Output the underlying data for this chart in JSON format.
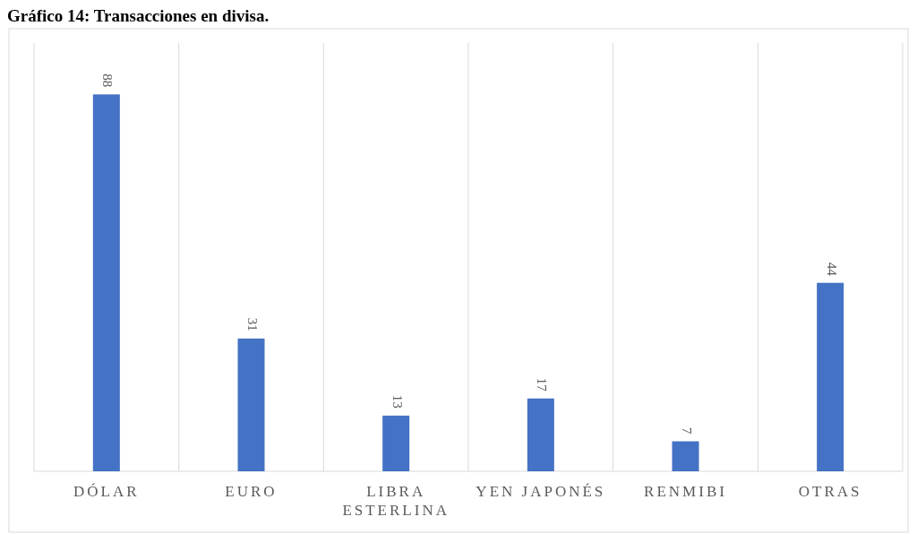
{
  "chart_data": {
    "type": "bar",
    "title": "Gráfico 14: Transacciones en divisa.",
    "categories": [
      "DÓLAR",
      "EURO",
      "LIBRA ESTERLINA",
      "YEN JAPONÉS",
      "RENMIBI",
      "OTRAS"
    ],
    "values": [
      88,
      31,
      13,
      17,
      7,
      44
    ],
    "color": "#4472c4",
    "ylim": [
      0,
      100
    ],
    "data_labels": true,
    "grid": "x"
  }
}
